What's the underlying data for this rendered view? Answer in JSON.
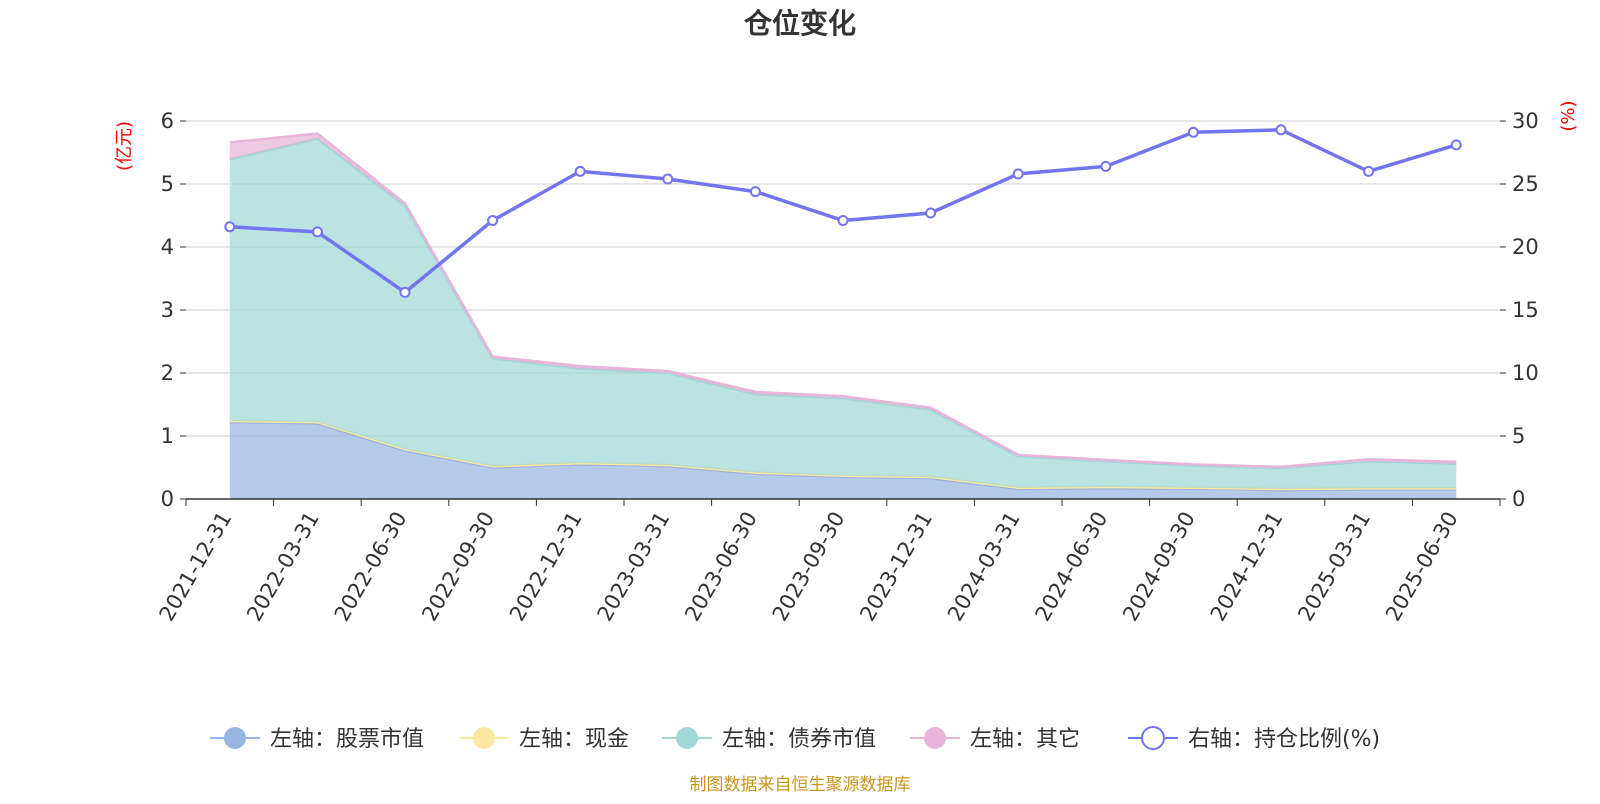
{
  "chart_data": {
    "type": "area",
    "title": "仓位变化",
    "left_axis_unit": "(亿元)",
    "right_axis_unit": "(%)",
    "categories": [
      "2021-12-31",
      "2022-03-31",
      "2022-06-30",
      "2022-09-30",
      "2022-12-31",
      "2023-03-31",
      "2023-06-30",
      "2023-09-30",
      "2023-12-31",
      "2024-03-31",
      "2024-06-30",
      "2024-09-30",
      "2024-12-31",
      "2025-03-31",
      "2025-06-30"
    ],
    "left_ylim": [
      0,
      6
    ],
    "left_ticks": [
      "0",
      "1",
      "2",
      "3",
      "4",
      "5",
      "6"
    ],
    "right_ylim": [
      0,
      30
    ],
    "right_ticks": [
      "0",
      "5",
      "10",
      "15",
      "20",
      "25",
      "30"
    ],
    "grid": true,
    "stacked": true,
    "legend_position": "bottom",
    "series": [
      {
        "name": "左轴：股票市值",
        "axis": "left",
        "kind": "area",
        "color": "#98b4e0",
        "values": [
          1.22,
          1.2,
          0.77,
          0.5,
          0.55,
          0.52,
          0.4,
          0.35,
          0.33,
          0.16,
          0.17,
          0.16,
          0.14,
          0.15,
          0.15
        ]
      },
      {
        "name": "左轴：现金",
        "axis": "left",
        "kind": "area",
        "color": "#fae8a0",
        "values": [
          0.02,
          0.02,
          0.02,
          0.02,
          0.02,
          0.02,
          0.02,
          0.02,
          0.02,
          0.02,
          0.02,
          0.02,
          0.02,
          0.02,
          0.02
        ]
      },
      {
        "name": "左轴：债券市值",
        "axis": "left",
        "kind": "area",
        "color": "#9fd8d6",
        "values": [
          4.15,
          4.5,
          3.86,
          1.71,
          1.5,
          1.46,
          1.24,
          1.23,
          1.07,
          0.5,
          0.41,
          0.35,
          0.33,
          0.43,
          0.39
        ]
      },
      {
        "name": "左轴：其它",
        "axis": "left",
        "kind": "area",
        "color": "#e8b4da",
        "values": [
          0.27,
          0.08,
          0.04,
          0.03,
          0.04,
          0.03,
          0.04,
          0.03,
          0.03,
          0.02,
          0.02,
          0.02,
          0.02,
          0.03,
          0.03
        ]
      },
      {
        "name": "右轴：持仓比例(%)",
        "axis": "right",
        "kind": "line",
        "color": "#7375ee",
        "values": [
          21.6,
          21.2,
          16.4,
          22.1,
          26.0,
          25.4,
          24.4,
          22.1,
          22.7,
          25.8,
          26.4,
          29.1,
          29.3,
          26.0,
          28.1
        ]
      }
    ]
  },
  "footer": {
    "source_text": "制图数据来自恒生聚源数据库"
  }
}
